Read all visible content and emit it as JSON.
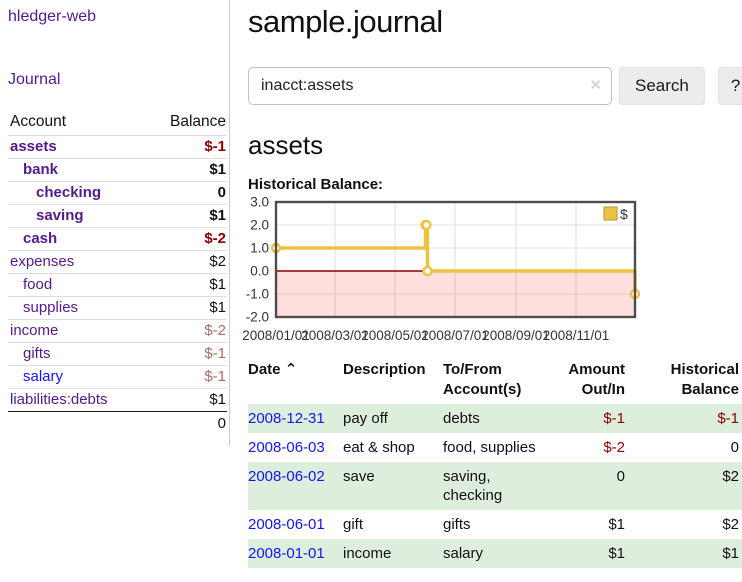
{
  "app": {
    "brand": "hledger-web"
  },
  "colors": {
    "link_visited": "#551a8b",
    "link_unvisited": "#1515ee",
    "negative_strong": "#8b0000",
    "negative_muted": "#b06a6a",
    "row_stripe_green": "#ddeedd",
    "chart_line": "#edc240",
    "button_bg": "#ececec"
  },
  "sidebar": {
    "journal_link": "Journal",
    "headers": {
      "account": "Account",
      "balance": "Balance"
    },
    "accounts": [
      {
        "name": "assets",
        "indent": 0,
        "balance": "$-1",
        "negative": true,
        "bold": true
      },
      {
        "name": "bank",
        "indent": 1,
        "balance": "$1",
        "negative": false,
        "bold": true
      },
      {
        "name": "checking",
        "indent": 2,
        "balance": "0",
        "negative": false,
        "bold": true
      },
      {
        "name": "saving",
        "indent": 2,
        "balance": "$1",
        "negative": false,
        "bold": true
      },
      {
        "name": "cash",
        "indent": 1,
        "balance": "$-2",
        "negative": true,
        "bold": true
      },
      {
        "name": "expenses",
        "indent": 0,
        "balance": "$2",
        "negative": false,
        "bold": false
      },
      {
        "name": "food",
        "indent": 1,
        "balance": "$1",
        "negative": false,
        "bold": false
      },
      {
        "name": "supplies",
        "indent": 1,
        "balance": "$1",
        "negative": false,
        "bold": false
      },
      {
        "name": "income",
        "indent": 0,
        "balance": "$-2",
        "negative": true,
        "bold": false
      },
      {
        "name": "gifts",
        "indent": 1,
        "balance": "$-1",
        "negative": true,
        "bold": false
      },
      {
        "name": "salary",
        "indent": 1,
        "balance": "$-1",
        "negative": true,
        "bold": false,
        "unvisited": true
      },
      {
        "name": "liabilities:debts",
        "indent": 0,
        "balance": "$1",
        "negative": false,
        "bold": false
      }
    ],
    "total": "0"
  },
  "header": {
    "title": "sample.journal"
  },
  "search": {
    "value": "inacct:assets",
    "clear_icon": "✕",
    "button": "Search",
    "help_button": "?"
  },
  "register": {
    "heading": "assets",
    "chart_label": "Historical Balance:",
    "table": {
      "sort_icon": "⌃",
      "headers": [
        {
          "label": "Date"
        },
        {
          "label": "Description"
        },
        {
          "label": "To/From\nAccount(s)"
        },
        {
          "label": "Amount\nOut/In",
          "align": "right"
        },
        {
          "label": "Historical\nBalance",
          "align": "right"
        }
      ],
      "rows": [
        {
          "date": "2008-12-31",
          "description": "pay off",
          "accounts": "debts",
          "amount": "$-1",
          "amount_negative": true,
          "balance": "$-1",
          "balance_negative": true
        },
        {
          "date": "2008-06-03",
          "description": "eat & shop",
          "accounts": "food, supplies",
          "amount": "$-2",
          "amount_negative": true,
          "balance": "0",
          "balance_negative": false
        },
        {
          "date": "2008-06-02",
          "description": "save",
          "accounts": "saving, checking",
          "amount": "0",
          "amount_negative": false,
          "balance": "$2",
          "balance_negative": false
        },
        {
          "date": "2008-06-01",
          "description": "gift",
          "accounts": "gifts",
          "amount": "$1",
          "amount_negative": false,
          "balance": "$2",
          "balance_negative": false
        },
        {
          "date": "2008-01-01",
          "description": "income",
          "accounts": "salary",
          "amount": "$1",
          "amount_negative": false,
          "balance": "$1",
          "balance_negative": false
        }
      ]
    }
  },
  "chart_data": {
    "type": "line",
    "title": "Historical Balance:",
    "steps": true,
    "series": [
      {
        "name": "$",
        "color": "#edc240",
        "points": [
          [
            "2008-01-01",
            1
          ],
          [
            "2008-06-01",
            2
          ],
          [
            "2008-06-02",
            2
          ],
          [
            "2008-06-03",
            0
          ],
          [
            "2008-12-31",
            -1
          ]
        ]
      }
    ],
    "x_range": [
      "2008-01-01",
      "2008-12-31"
    ],
    "x_ticks": [
      "2008/01/01",
      "2008/03/01",
      "2008/05/01",
      "2008/07/01",
      "2008/09/01",
      "2008/11/01"
    ],
    "y_ticks": [
      3.0,
      2.0,
      1.0,
      0.0,
      -1.0,
      -2.0
    ],
    "ylim": [
      -2,
      3
    ],
    "grid": true,
    "legend_position": "top-right",
    "negative_region_color": "rgba(255,0,0,0.13)",
    "zero_line_color": "#8b0000"
  }
}
